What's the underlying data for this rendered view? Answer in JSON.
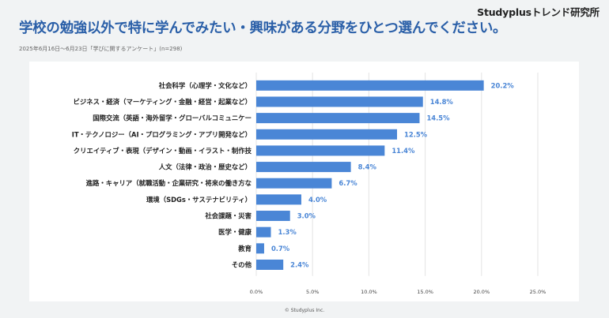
{
  "brand": "Studyplusトレンド研究所",
  "title": "学校の勉強以外で特に学んでみたい・興味がある分野をひとつ選んでください。",
  "subtitle": "2025年6月16日～6月23日「学びに関するアンケート」(n=298)",
  "footer": "© Studyplus Inc.",
  "chart_data": {
    "type": "bar",
    "orientation": "horizontal",
    "categories": [
      "社会科学（心理学・文化など）",
      "ビジネス・経済（マーケティング・金融・経営・起業など）",
      "国際交流（英語・海外留学・グローバルコミュニケー",
      "IT・テクノロジー（AI・プログラミング・アプリ開発など）",
      "クリエイティブ・表現（デザイン・動画・イラスト・制作技",
      "人文（法律・政治・歴史など）",
      "進路・キャリア（就職活動・企業研究・将来の働き方な",
      "環境（SDGs・サステナビリティ）",
      "社会課題・災害",
      "医学・健康",
      "教育",
      "その他"
    ],
    "values": [
      20.2,
      14.8,
      14.5,
      12.5,
      11.4,
      8.4,
      6.7,
      4.0,
      3.0,
      1.3,
      0.7,
      2.4
    ],
    "value_labels": [
      "20.2%",
      "14.8%",
      "14.5%",
      "12.5%",
      "11.4%",
      "8.4%",
      "6.7%",
      "4.0%",
      "3.0%",
      "1.3%",
      "0.7%",
      "2.4%"
    ],
    "xticks": [
      "0.0%",
      "5.0%",
      "10.0%",
      "15.0%",
      "20.0%",
      "25.0%"
    ],
    "xlim": [
      0,
      25
    ],
    "grid": true,
    "colors": {
      "bar": "#4a86d6",
      "value_label": "#4a86d6",
      "title": "#2a5fa8",
      "grid": "#e3e3e3"
    }
  }
}
